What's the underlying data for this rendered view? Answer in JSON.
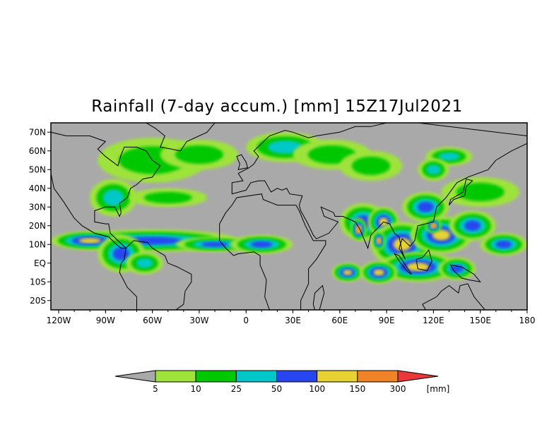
{
  "title": "Rainfall (7-day accum.) [mm] 15Z17Jul2021",
  "map": {
    "lon_range": [
      -125,
      180
    ],
    "lat_range": [
      -25,
      75
    ],
    "land_fill": "#a9a9a9",
    "x_ticks": [
      {
        "lon": -120,
        "label": "120W"
      },
      {
        "lon": -90,
        "label": "90W"
      },
      {
        "lon": -60,
        "label": "60W"
      },
      {
        "lon": -30,
        "label": "30W"
      },
      {
        "lon": 0,
        "label": "0"
      },
      {
        "lon": 30,
        "label": "30E"
      },
      {
        "lon": 60,
        "label": "60E"
      },
      {
        "lon": 90,
        "label": "90E"
      },
      {
        "lon": 120,
        "label": "120E"
      },
      {
        "lon": 150,
        "label": "150E"
      },
      {
        "lon": 180,
        "label": "180"
      }
    ],
    "y_ticks": [
      {
        "lat": 70,
        "label": "70N"
      },
      {
        "lat": 60,
        "label": "60N"
      },
      {
        "lat": 50,
        "label": "50N"
      },
      {
        "lat": 40,
        "label": "40N"
      },
      {
        "lat": 30,
        "label": "30N"
      },
      {
        "lat": 20,
        "label": "20N"
      },
      {
        "lat": 10,
        "label": "10N"
      },
      {
        "lat": 0,
        "label": "EQ"
      },
      {
        "lat": -10,
        "label": "10S"
      },
      {
        "lat": -20,
        "label": "20S"
      }
    ]
  },
  "colorbar": {
    "unit": "[mm]",
    "under_color": "#a9a9a9",
    "over_color": "#e8383a",
    "bins": [
      {
        "color": "#9ee33a"
      },
      {
        "color": "#00c800"
      },
      {
        "color": "#00c8c8"
      },
      {
        "color": "#2846f0"
      },
      {
        "color": "#e6d232"
      },
      {
        "color": "#f08228"
      }
    ],
    "labels": [
      "5",
      "10",
      "25",
      "50",
      "100",
      "150",
      "300"
    ]
  },
  "rain_regions": [
    {
      "lon": -60,
      "lat": 12,
      "rx": 55,
      "ry": 6,
      "level": 3
    },
    {
      "lon": -100,
      "lat": 12,
      "rx": 25,
      "ry": 5,
      "level": 4
    },
    {
      "lon": -20,
      "lat": 10,
      "rx": 25,
      "ry": 4,
      "level": 3
    },
    {
      "lon": 10,
      "lat": 10,
      "rx": 20,
      "ry": 5,
      "level": 3
    },
    {
      "lon": -80,
      "lat": 5,
      "rx": 15,
      "ry": 10,
      "level": 3
    },
    {
      "lon": -65,
      "lat": 0,
      "rx": 12,
      "ry": 6,
      "level": 2
    },
    {
      "lon": -85,
      "lat": 35,
      "rx": 15,
      "ry": 10,
      "level": 2
    },
    {
      "lon": -60,
      "lat": 55,
      "rx": 35,
      "ry": 12,
      "level": 1
    },
    {
      "lon": -30,
      "lat": 58,
      "rx": 25,
      "ry": 8,
      "level": 1
    },
    {
      "lon": 25,
      "lat": 62,
      "rx": 25,
      "ry": 8,
      "level": 2
    },
    {
      "lon": 55,
      "lat": 58,
      "rx": 25,
      "ry": 8,
      "level": 1
    },
    {
      "lon": 80,
      "lat": 52,
      "rx": 20,
      "ry": 8,
      "level": 1
    },
    {
      "lon": 75,
      "lat": 22,
      "rx": 15,
      "ry": 10,
      "level": 3
    },
    {
      "lon": 88,
      "lat": 22,
      "rx": 10,
      "ry": 8,
      "level": 4
    },
    {
      "lon": 72,
      "lat": 18,
      "rx": 5,
      "ry": 6,
      "level": 5
    },
    {
      "lon": 100,
      "lat": 10,
      "rx": 20,
      "ry": 12,
      "level": 4
    },
    {
      "lon": 125,
      "lat": 15,
      "rx": 20,
      "ry": 10,
      "level": 4
    },
    {
      "lon": 145,
      "lat": 20,
      "rx": 15,
      "ry": 8,
      "level": 3
    },
    {
      "lon": 110,
      "lat": -2,
      "rx": 25,
      "ry": 8,
      "level": 4
    },
    {
      "lon": 135,
      "lat": -3,
      "rx": 12,
      "ry": 6,
      "level": 3
    },
    {
      "lon": 150,
      "lat": 38,
      "rx": 25,
      "ry": 8,
      "level": 1
    },
    {
      "lon": 165,
      "lat": 10,
      "rx": 15,
      "ry": 6,
      "level": 3
    },
    {
      "lon": 65,
      "lat": -5,
      "rx": 10,
      "ry": 5,
      "level": 4
    },
    {
      "lon": 85,
      "lat": -5,
      "rx": 12,
      "ry": 6,
      "level": 4
    },
    {
      "lon": 115,
      "lat": 30,
      "rx": 15,
      "ry": 8,
      "level": 3
    },
    {
      "lon": 120,
      "lat": 20,
      "rx": 5,
      "ry": 4,
      "level": 5
    },
    {
      "lon": 85,
      "lat": 12,
      "rx": 4,
      "ry": 5,
      "level": 5
    },
    {
      "lon": 130,
      "lat": 57,
      "rx": 15,
      "ry": 5,
      "level": 2
    },
    {
      "lon": -50,
      "lat": 35,
      "rx": 25,
      "ry": 5,
      "level": 1
    },
    {
      "lon": 120,
      "lat": 50,
      "rx": 10,
      "ry": 6,
      "level": 2
    }
  ]
}
